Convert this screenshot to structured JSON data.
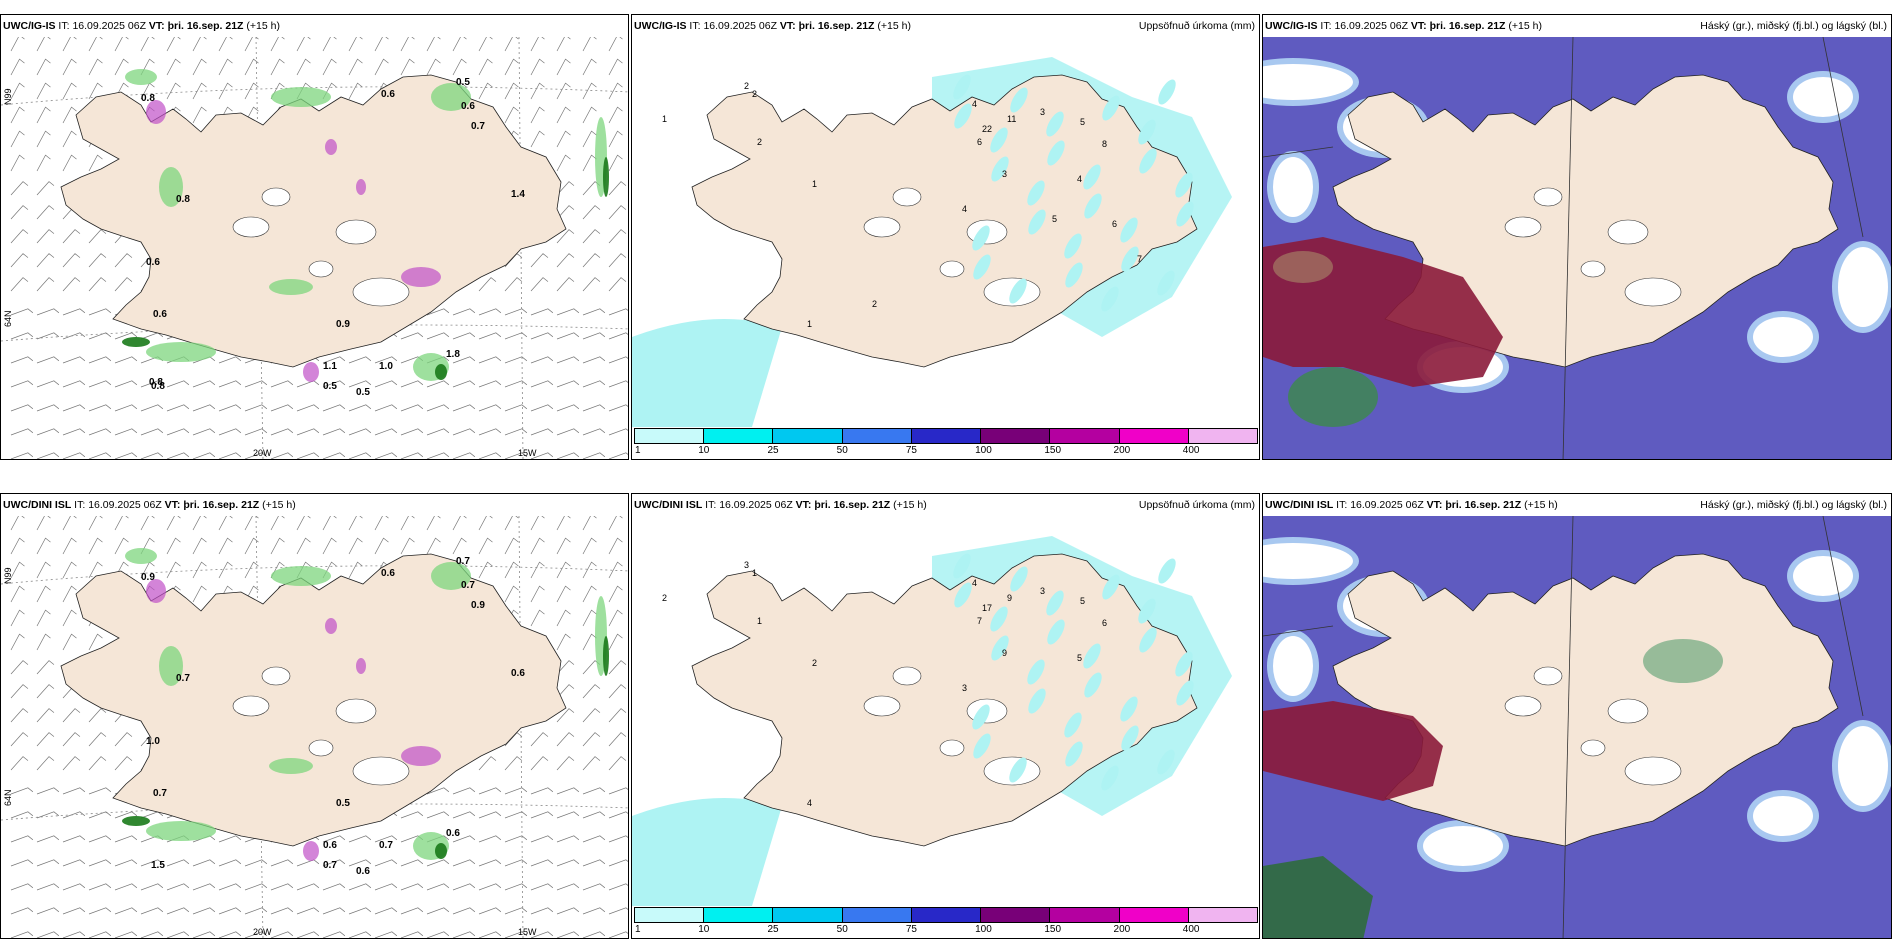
{
  "rows": [
    {
      "panels": [
        {
          "model": "UWC/IG-IS",
          "it_label": "IT:",
          "it": "16.09.2025 06Z",
          "vt_label": "VT:",
          "vt": "þri. 16.sep. 21Z",
          "lead": "(+15 h)",
          "right": "",
          "kind": "wind"
        },
        {
          "model": "UWC/IG-IS",
          "it_label": "IT:",
          "it": "16.09.2025 06Z",
          "vt_label": "VT:",
          "vt": "þri. 16.sep. 21Z",
          "lead": "(+15 h)",
          "right": "Uppsöfnuð úrkoma (mm)",
          "kind": "precip"
        },
        {
          "model": "UWC/IG-IS",
          "it_label": "IT:",
          "it": "16.09.2025 06Z",
          "vt_label": "VT:",
          "vt": "þri. 16.sep. 21Z",
          "lead": "(+15 h)",
          "right": "Háský (gr.), miðský (fj.bl.) og lágský (bl.)",
          "kind": "cloud"
        }
      ]
    },
    {
      "panels": [
        {
          "model": "UWC/DINI ISL",
          "it_label": "IT:",
          "it": "16.09.2025 06Z",
          "vt_label": "VT:",
          "vt": "þri. 16.sep. 21Z",
          "lead": "(+15 h)",
          "right": "",
          "kind": "wind"
        },
        {
          "model": "UWC/DINI ISL",
          "it_label": "IT:",
          "it": "16.09.2025 06Z",
          "vt_label": "VT:",
          "vt": "þri. 16.sep. 21Z",
          "lead": "(+15 h)",
          "right": "Uppsöfnuð úrkoma (mm)",
          "kind": "precip"
        },
        {
          "model": "UWC/DINI ISL",
          "it_label": "IT:",
          "it": "16.09.2025 06Z",
          "vt_label": "VT:",
          "vt": "þri. 16.sep. 21Z",
          "lead": "(+15 h)",
          "right": "Háský (gr.), miðský (fj.bl.) og lágský (bl.)",
          "kind": "cloud"
        }
      ]
    }
  ],
  "axes": {
    "lon_labels": [
      "20W",
      "15W"
    ],
    "lat_labels": [
      "66N",
      "64N",
      "N99"
    ]
  },
  "colorbar": {
    "ticks": [
      "1",
      "10",
      "25",
      "50",
      "75",
      "100",
      "150",
      "200",
      "400"
    ],
    "colors": [
      "#c8fafa",
      "#00f0f0",
      "#00c8f0",
      "#3878f0",
      "#2828c8",
      "#780078",
      "#b400a0",
      "#f000c8",
      "#f0b4f0"
    ]
  },
  "wind_labels_top": [
    "0.8",
    "0.6",
    "0.8",
    "0.5",
    "0.6",
    "0.7",
    "0.6",
    "0.8",
    "1.4",
    "0.6",
    "0.9",
    "1.8",
    "1.1",
    "1.0",
    "0.5",
    "0.5",
    "0.8"
  ],
  "wind_labels_bottom": [
    "0.9",
    "0.6",
    "0.7",
    "0.7",
    "0.7",
    "0.9",
    "0.7",
    "1.5",
    "0.6",
    "1.0",
    "0.5",
    "0.6",
    "0.6",
    "0.7",
    "0.7",
    "0.6"
  ],
  "precip_labels_top": [
    "2",
    "1",
    "2",
    "4",
    "22",
    "11",
    "3",
    "6",
    "5",
    "8",
    "4",
    "1",
    "2",
    "3",
    "4",
    "1",
    "2",
    "7",
    "6",
    "5"
  ],
  "precip_labels_bottom": [
    "1",
    "2",
    "3",
    "4",
    "17",
    "9",
    "3",
    "7",
    "5",
    "6",
    "3",
    "2",
    "1",
    "9",
    "5",
    "4"
  ],
  "colors": {
    "land": "#f5e6d7",
    "wind_green": "#7ed67e",
    "wind_dark": "#1a7a1a",
    "precip_cyan": "#aef3f3",
    "cloud_blue": "#5f5bc0",
    "cloud_lightblue": "#a8c8f0",
    "cloud_red": "#8b1a3a"
  }
}
